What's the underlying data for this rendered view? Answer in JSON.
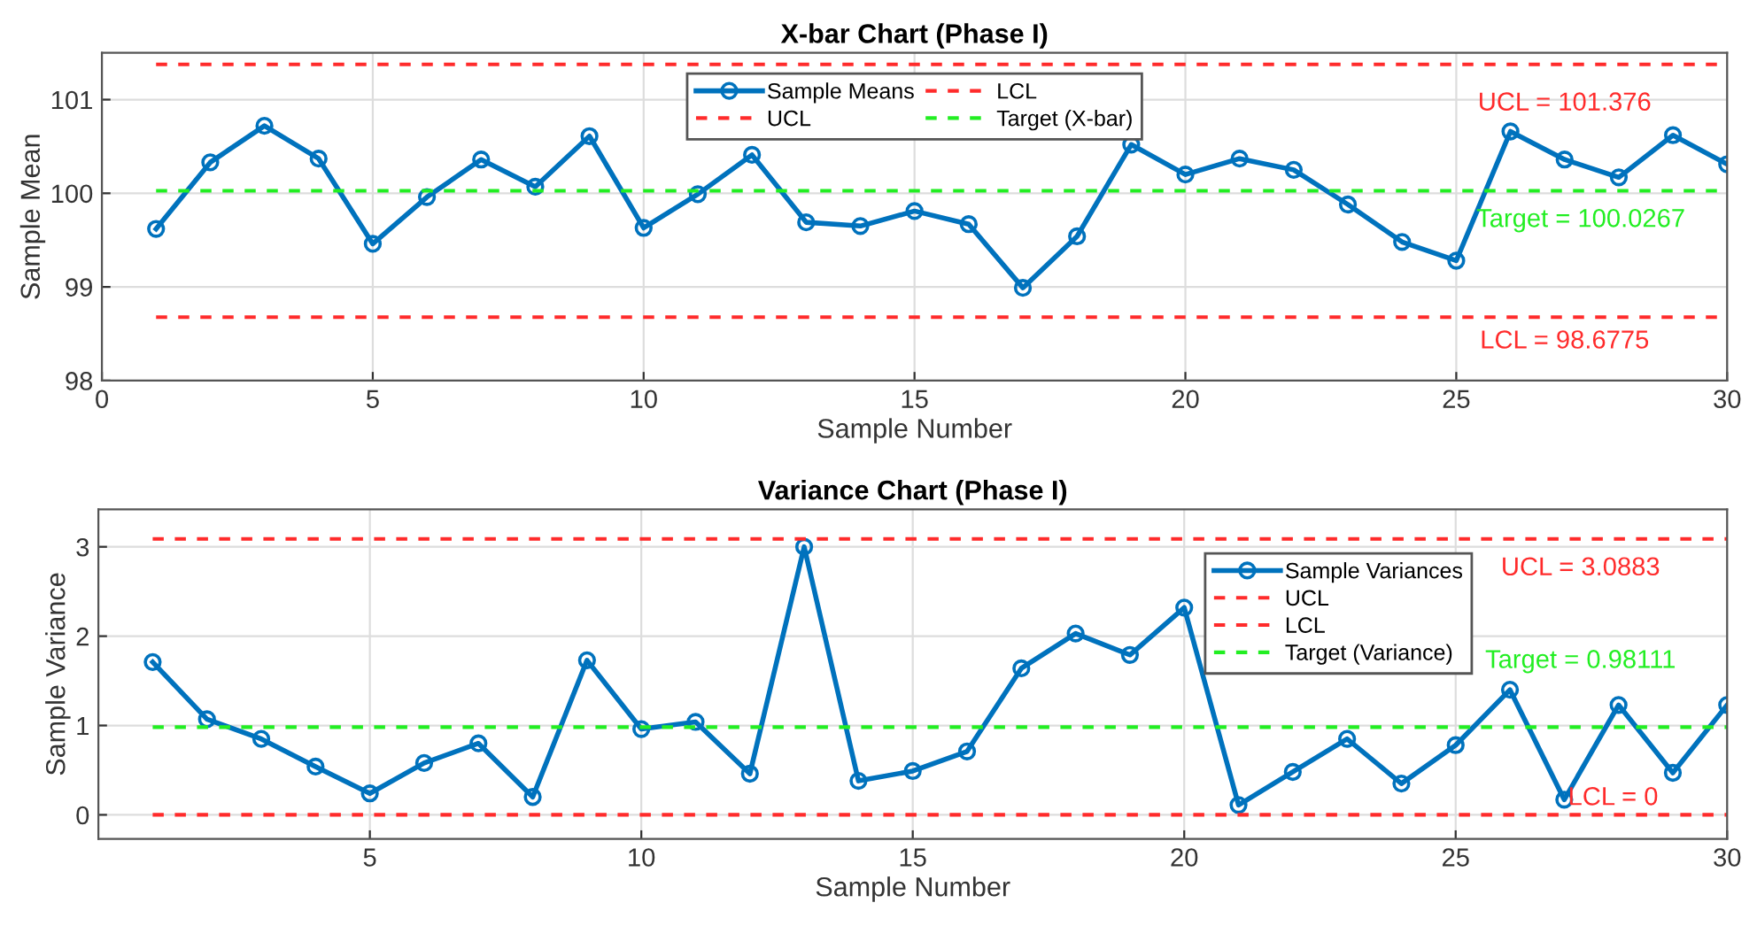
{
  "chart_data": [
    {
      "type": "line",
      "title": "X-bar Chart (Phase I)",
      "xlabel": "Sample Number",
      "ylabel": "Sample Mean",
      "x": [
        1,
        2,
        3,
        4,
        5,
        6,
        7,
        8,
        9,
        10,
        11,
        12,
        13,
        14,
        15,
        16,
        17,
        18,
        19,
        20,
        21,
        22,
        23,
        24,
        25,
        26,
        27,
        28,
        29,
        30
      ],
      "series": [
        {
          "name": "Sample Means",
          "color": "#0072bd",
          "values": [
            99.62,
            100.33,
            100.72,
            100.37,
            99.46,
            99.96,
            100.36,
            100.07,
            100.61,
            99.63,
            99.99,
            100.41,
            99.69,
            99.65,
            99.81,
            99.67,
            98.99,
            99.54,
            100.52,
            100.2,
            100.37,
            100.25,
            99.88,
            99.48,
            99.28,
            100.66,
            100.36,
            100.17,
            100.62,
            100.31
          ]
        }
      ],
      "marker": "circle",
      "ref_lines": [
        {
          "axis": "y",
          "value": 101.376,
          "label": "UCL",
          "color": "#ff2b2b",
          "line_style": "dashed"
        },
        {
          "axis": "y",
          "value": 98.6775,
          "label": "LCL",
          "color": "#ff2b2b",
          "line_style": "dashed"
        },
        {
          "axis": "y",
          "value": 100.0267,
          "label": "Target (X-bar)",
          "color": "#22ee22",
          "line_style": "dashed"
        }
      ],
      "annotations": [
        "UCL = 101.376",
        "LCL = 98.6775",
        "Target = 100.0267"
      ],
      "xlim": [
        0,
        30
      ],
      "xticks": [
        0,
        5,
        10,
        15,
        20,
        25,
        30
      ],
      "ylim": [
        98,
        101.5
      ],
      "yticks": [
        98,
        99,
        100,
        101
      ],
      "grid": true,
      "legend": "top"
    },
    {
      "type": "line",
      "title": "Variance Chart (Phase I)",
      "xlabel": "Sample Number",
      "ylabel": "Sample Variance",
      "x": [
        1,
        2,
        3,
        4,
        5,
        6,
        7,
        8,
        9,
        10,
        11,
        12,
        13,
        14,
        15,
        16,
        17,
        18,
        19,
        20,
        21,
        22,
        23,
        24,
        25,
        26,
        27,
        28,
        29,
        30
      ],
      "series": [
        {
          "name": "Sample Variances",
          "color": "#0072bd",
          "values": [
            1.71,
            1.07,
            0.85,
            0.54,
            0.24,
            0.58,
            0.8,
            0.2,
            1.73,
            0.96,
            1.04,
            0.46,
            3.0,
            0.38,
            0.49,
            0.71,
            1.64,
            2.03,
            1.79,
            2.32,
            0.11,
            0.48,
            0.85,
            0.35,
            0.78,
            1.4,
            0.17,
            1.23,
            0.47,
            1.23
          ]
        }
      ],
      "marker": "circle",
      "ref_lines": [
        {
          "axis": "y",
          "value": 3.0883,
          "label": "UCL",
          "color": "#ff2b2b",
          "line_style": "dashed"
        },
        {
          "axis": "y",
          "value": 0,
          "label": "LCL",
          "color": "#ff2b2b",
          "line_style": "dashed"
        },
        {
          "axis": "y",
          "value": 0.98111,
          "label": "Target (Variance)",
          "color": "#22ee22",
          "line_style": "dashed"
        }
      ],
      "annotations": [
        "UCL = 3.0883",
        "LCL = 0",
        "Target = 0.98111"
      ],
      "xlim": [
        0,
        30
      ],
      "xticks": [
        5,
        10,
        15,
        20,
        25,
        30
      ],
      "ylim": [
        -0.27,
        3.42
      ],
      "yticks": [
        0,
        1,
        2,
        3
      ],
      "grid": true,
      "legend": "top right"
    }
  ]
}
